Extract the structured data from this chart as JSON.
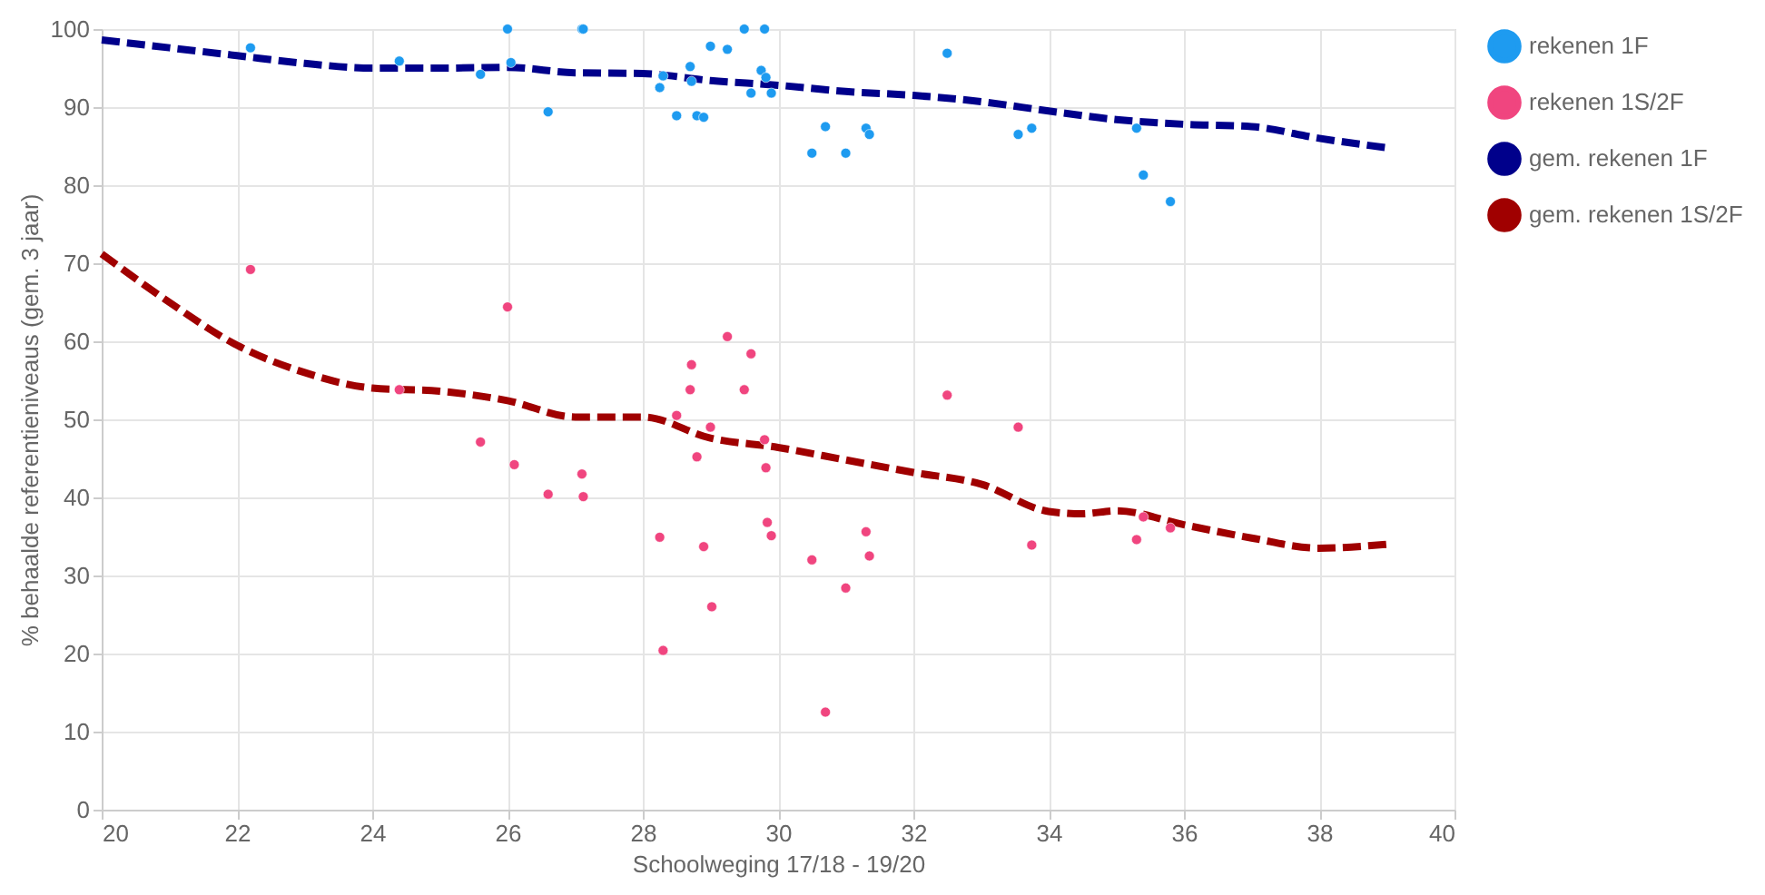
{
  "chart_data": {
    "type": "scatter",
    "xlabel": "Schoolweging 17/18 - 19/20",
    "ylabel": "% behaalde referentieniveaus (gem. 3 jaar)",
    "xlim": [
      20,
      40
    ],
    "xticks": [
      20,
      22,
      24,
      26,
      28,
      30,
      32,
      34,
      36,
      38,
      40
    ],
    "ylim": [
      0,
      100
    ],
    "yticks": [
      0,
      10,
      20,
      30,
      40,
      50,
      60,
      70,
      80,
      90,
      100
    ],
    "grid": true,
    "legend": "top right",
    "series": [
      {
        "name": "rekenen 1F",
        "marker": "circle",
        "color": "#1e9bf0",
        "x": [
          22.2,
          24.4,
          25.6,
          26.0,
          26.05,
          26.6,
          27.1,
          27.12,
          28.25,
          28.3,
          28.5,
          28.7,
          28.72,
          28.8,
          28.9,
          29.0,
          29.25,
          29.5,
          29.8,
          29.6,
          29.75,
          29.82,
          29.9,
          30.5,
          30.7,
          31.0,
          31.3,
          31.35,
          32.5,
          33.55,
          33.75,
          35.3,
          35.4,
          35.8
        ],
        "values": [
          97.6,
          95.9,
          94.2,
          100,
          95.7,
          89.4,
          100,
          100,
          92.5,
          94,
          88.9,
          95.2,
          93.3,
          88.9,
          88.7,
          97.8,
          97.4,
          100,
          100,
          91.8,
          94.7,
          93.8,
          91.8,
          84.1,
          87.5,
          84.1,
          87.3,
          86.5,
          96.9,
          86.5,
          87.3,
          87.3,
          81.3,
          77.9
        ]
      },
      {
        "name": "rekenen 1S/2F",
        "marker": "circle",
        "color": "#f0457f",
        "x": [
          22.2,
          24.4,
          25.6,
          26.0,
          26.1,
          26.6,
          27.1,
          27.12,
          28.25,
          28.3,
          28.5,
          28.7,
          28.72,
          28.8,
          28.9,
          29.0,
          29.02,
          29.25,
          29.5,
          29.6,
          29.8,
          29.82,
          29.84,
          29.9,
          30.5,
          30.7,
          31.0,
          31.3,
          31.35,
          32.5,
          33.55,
          33.75,
          35.3,
          35.4,
          35.8
        ],
        "values": [
          69.2,
          53.8,
          47.1,
          64.4,
          44.2,
          40.4,
          43.0,
          40.1,
          34.9,
          20.4,
          50.5,
          53.8,
          57.0,
          45.2,
          33.7,
          49.0,
          26.0,
          60.6,
          53.8,
          58.4,
          47.4,
          43.8,
          36.8,
          35.1,
          32.0,
          12.5,
          28.4,
          35.6,
          32.5,
          53.1,
          49.0,
          33.9,
          34.6,
          37.5,
          36.1
        ]
      },
      {
        "name": "gem. rekenen 1F",
        "type": "line",
        "line_style": "dashed",
        "color": "#00008b",
        "x": [
          20,
          21,
          22,
          23,
          24,
          25,
          26,
          27,
          28,
          29,
          30,
          31,
          32,
          33,
          34,
          35,
          36,
          37,
          38,
          39
        ],
        "values": [
          98.6,
          97.6,
          96.6,
          95.6,
          95,
          95,
          95.1,
          94.4,
          94.3,
          93.4,
          92.8,
          92,
          91.5,
          90.7,
          89.5,
          88.4,
          87.8,
          87.5,
          86,
          84.8
        ]
      },
      {
        "name": "gem. rekenen 1S/2F",
        "type": "line",
        "line_style": "dashed",
        "color": "#a00000",
        "x": [
          20,
          21,
          22,
          23,
          24,
          25,
          26,
          27,
          28,
          29,
          30,
          31,
          32,
          33,
          34,
          34.5,
          35,
          36,
          37,
          38,
          39
        ],
        "values": [
          71.2,
          65,
          59.5,
          56,
          54,
          53.6,
          52.4,
          50.3,
          50.3,
          47.6,
          46.4,
          44.8,
          43.2,
          41.7,
          38.2,
          37.9,
          38.3,
          36.5,
          34.8,
          33.5,
          34
        ]
      }
    ]
  }
}
